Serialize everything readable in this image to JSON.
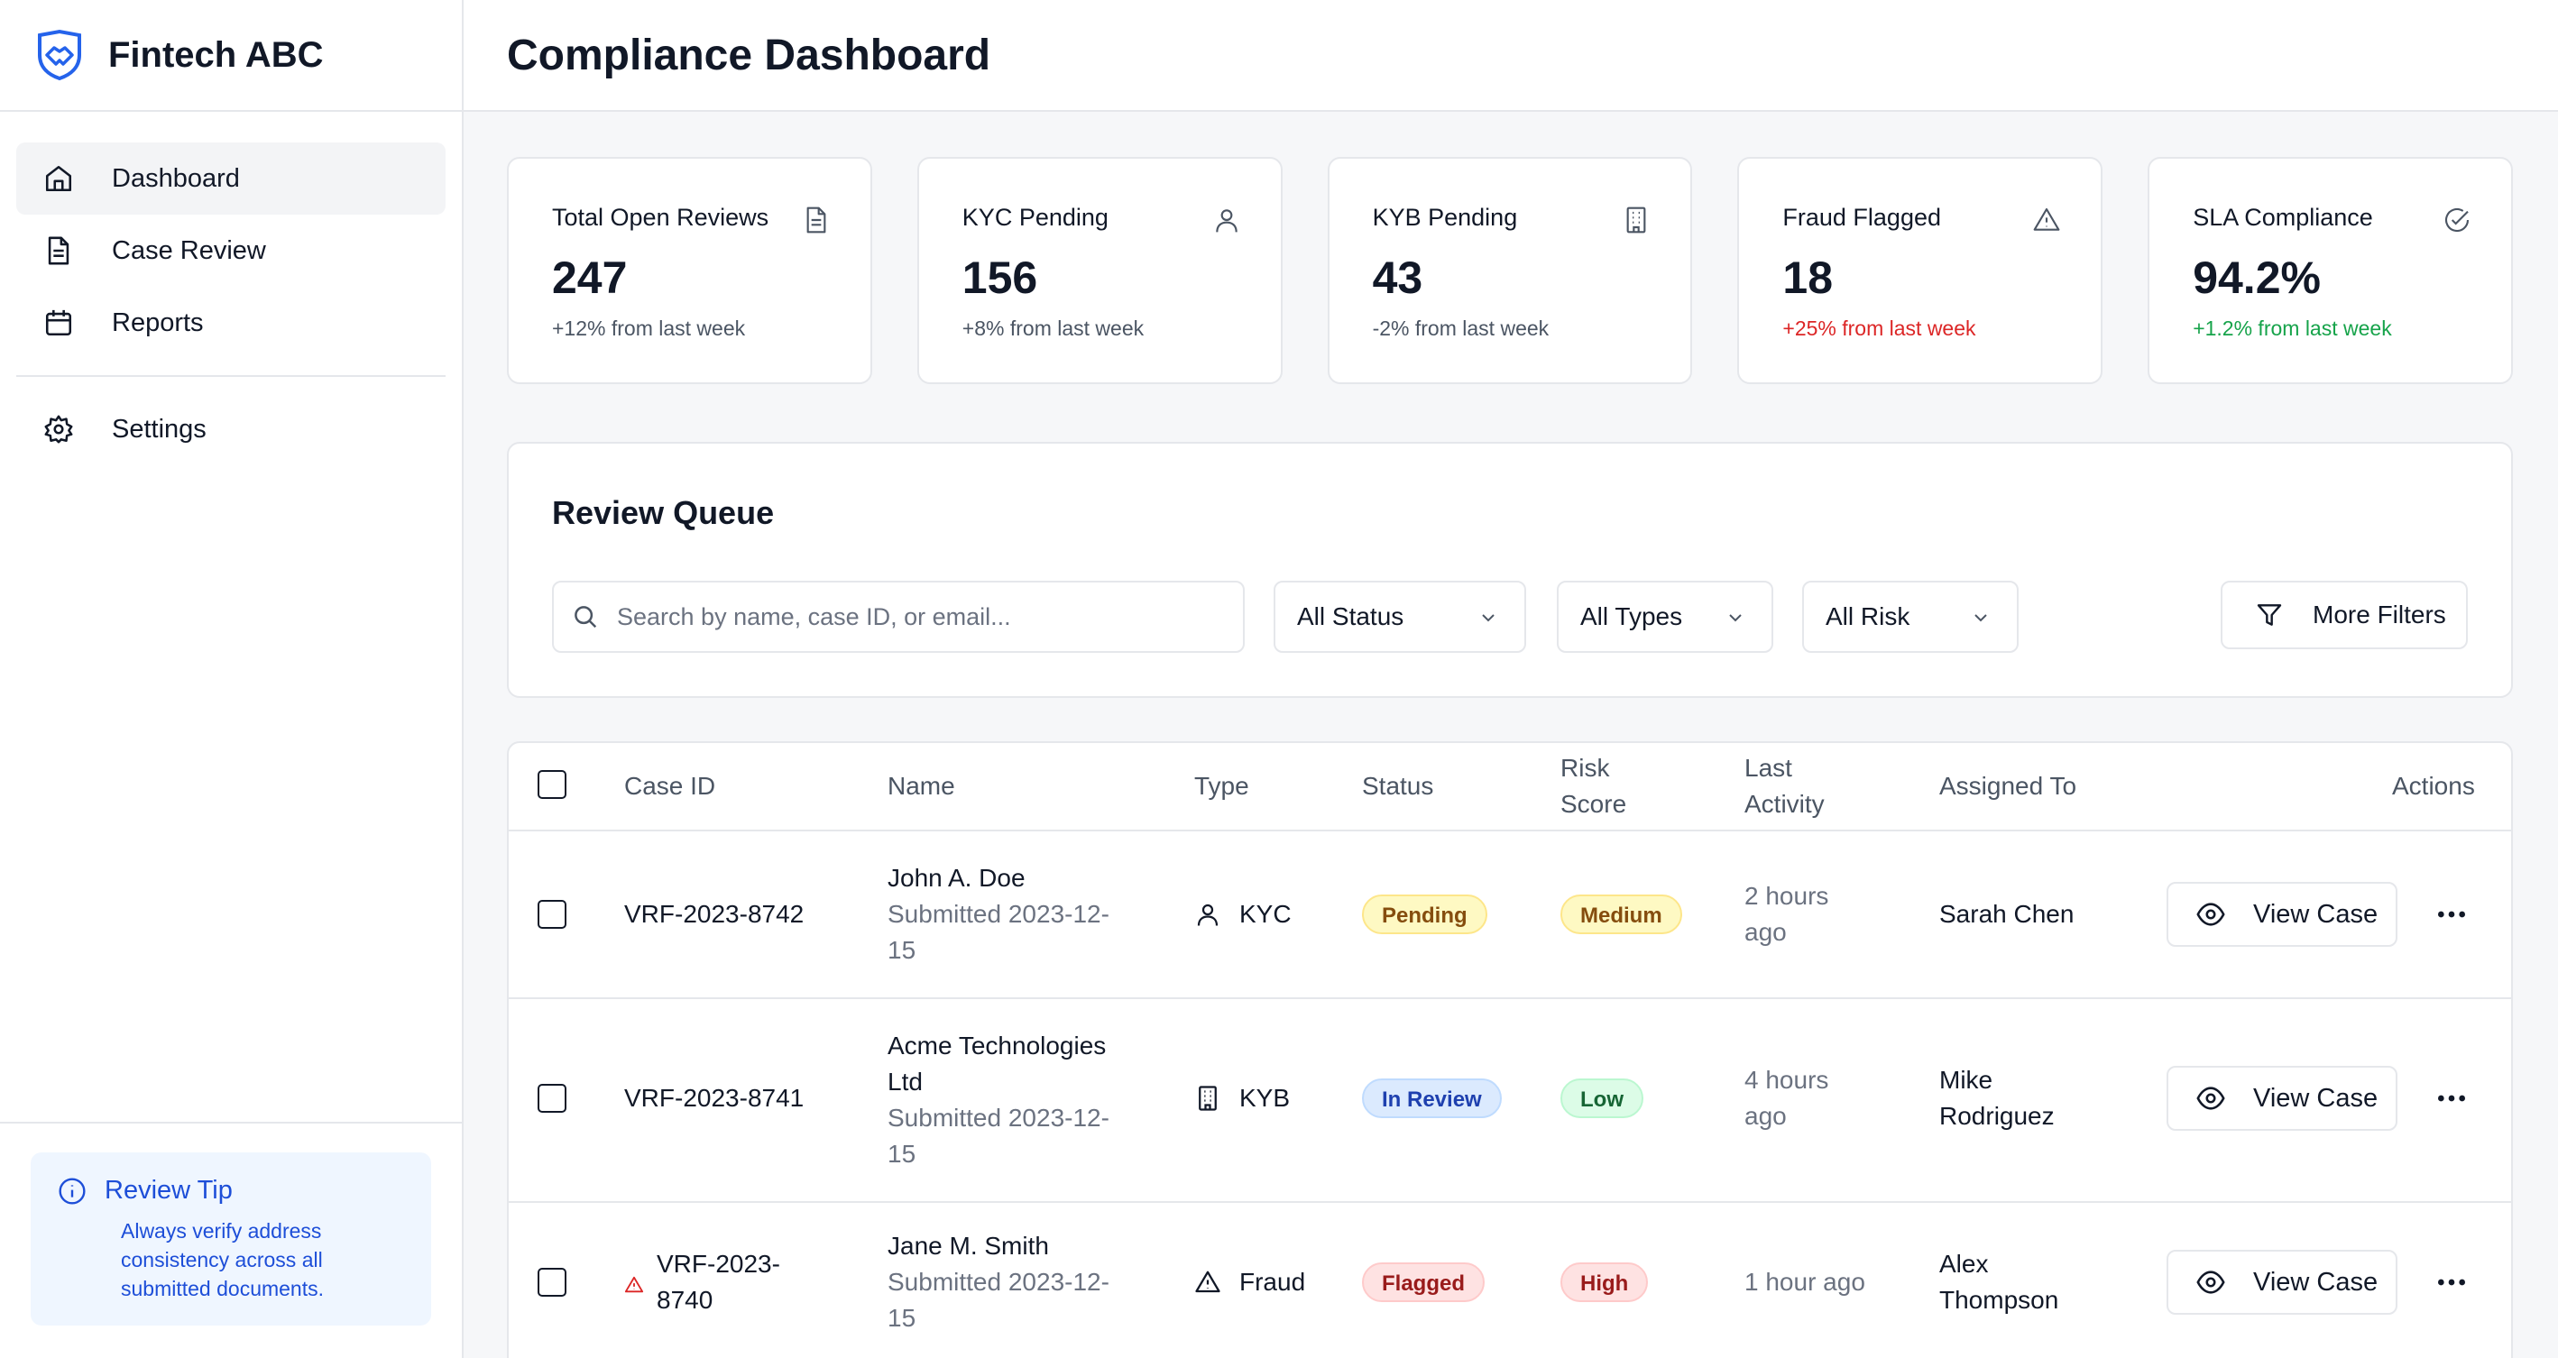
{
  "brand": {
    "name": "Fintech ABC"
  },
  "sidebar": {
    "items": [
      {
        "label": "Dashboard",
        "icon": "home-icon",
        "active": true
      },
      {
        "label": "Case Review",
        "icon": "document-icon"
      },
      {
        "label": "Reports",
        "icon": "calendar-icon"
      },
      {
        "label": "Settings",
        "icon": "gear-icon"
      }
    ],
    "tip": {
      "title": "Review Tip",
      "line1": "Always verify address",
      "line2": "consistency across all",
      "line3": "submitted documents."
    }
  },
  "header": {
    "title": "Compliance Dashboard"
  },
  "cards": [
    {
      "title": "Total Open Reviews",
      "value": "247",
      "delta": "+12% from last week",
      "icon": "document-icon"
    },
    {
      "title": "KYC Pending",
      "value": "156",
      "delta": "+8% from last week",
      "icon": "user-icon"
    },
    {
      "title": "KYB Pending",
      "value": "43",
      "delta": "-2% from last week",
      "icon": "building-icon"
    },
    {
      "title": "Fraud Flagged",
      "value": "18",
      "delta": "+25% from last week",
      "icon": "warning-icon",
      "delta_color": "#dc2626"
    },
    {
      "title": "SLA Compliance",
      "value": "94.2%",
      "delta": "+1.2% from last week",
      "icon": "check-circle-icon",
      "delta_color": "#16a34a"
    }
  ],
  "queue": {
    "title": "Review Queue",
    "search_placeholder": "Search by name, case ID, or email...",
    "status_filter": "All Status",
    "type_filter": "All Types",
    "risk_filter": "All Risk",
    "more_filters": "More Filters"
  },
  "table": {
    "headers": {
      "case_id": "Case ID",
      "name": "Name",
      "type": "Type",
      "status": "Status",
      "risk_1": "Risk",
      "risk_2": "Score",
      "activity_1": "Last",
      "activity_2": "Activity",
      "assigned": "Assigned To",
      "actions": "Actions"
    },
    "rows": [
      {
        "case_id": "VRF-2023-8742",
        "name": "John A. Doe",
        "submitted_1": "Submitted 2023-12-",
        "submitted_2": "15",
        "type": "KYC",
        "status": "Pending",
        "risk": "Medium",
        "activity_1": "2 hours",
        "activity_2": "ago",
        "assigned": "Sarah Chen",
        "action": "View Case"
      },
      {
        "case_id": "VRF-2023-8741",
        "name_1": "Acme Technologies",
        "name_2": "Ltd",
        "submitted_1": "Submitted 2023-12-",
        "submitted_2": "15",
        "type": "KYB",
        "status": "In Review",
        "risk": "Low",
        "activity_1": "4 hours",
        "activity_2": "ago",
        "assigned_1": "Mike",
        "assigned_2": "Rodriguez",
        "action": "View Case"
      },
      {
        "case_id_1": "VRF-2023-",
        "case_id_2": "8740",
        "name": "Jane M. Smith",
        "submitted_1": "Submitted 2023-12-",
        "submitted_2": "15",
        "type": "Fraud",
        "status": "Flagged",
        "risk": "High",
        "activity": "1 hour ago",
        "assigned_1": "Alex",
        "assigned_2": "Thompson",
        "action": "View Case"
      }
    ]
  }
}
